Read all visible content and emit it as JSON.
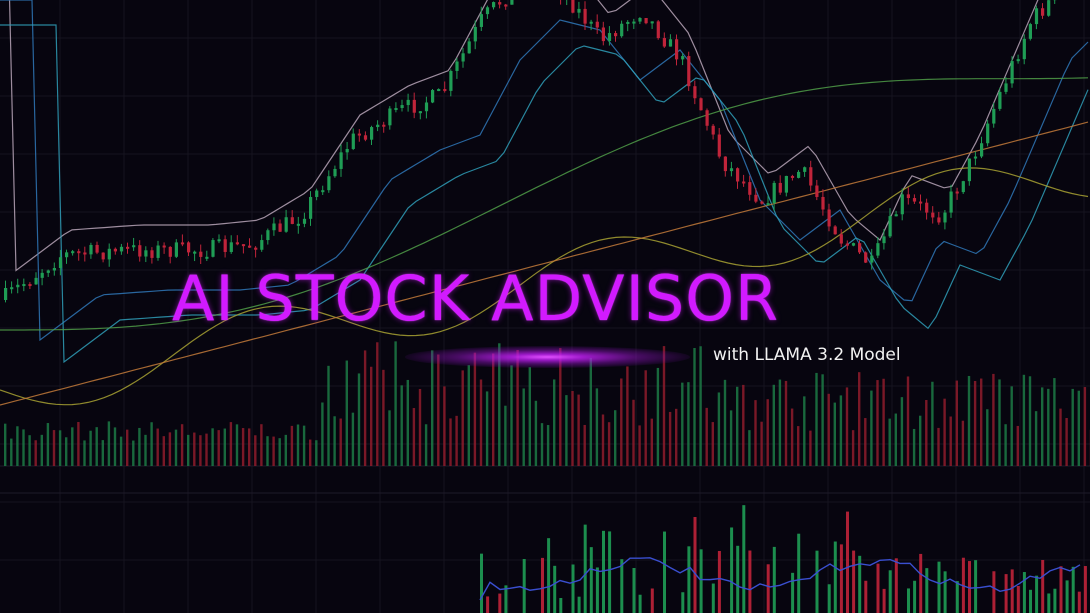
{
  "banner": {
    "title": "AI STOCK ADVISOR",
    "subtitle": "with LLAMA 3.2 Model"
  },
  "colors": {
    "background": "#07050f",
    "title": "#d21aff",
    "subtitle": "#f2f2f2",
    "candle_up": "#1f9d55",
    "candle_down": "#c0243a",
    "volume_up": "#1c7a45",
    "volume_down": "#8e1c2c",
    "ma_white": "#b8a6b8",
    "ma_blue": "#2f78b8",
    "ma_cyan": "#2f9fb8",
    "ma_green": "#4f9e48",
    "ma_yellow": "#a8a232",
    "ma_orange": "#c27a3a",
    "indicator_line": "#3a4fd0",
    "grid": "#15131f"
  }
}
